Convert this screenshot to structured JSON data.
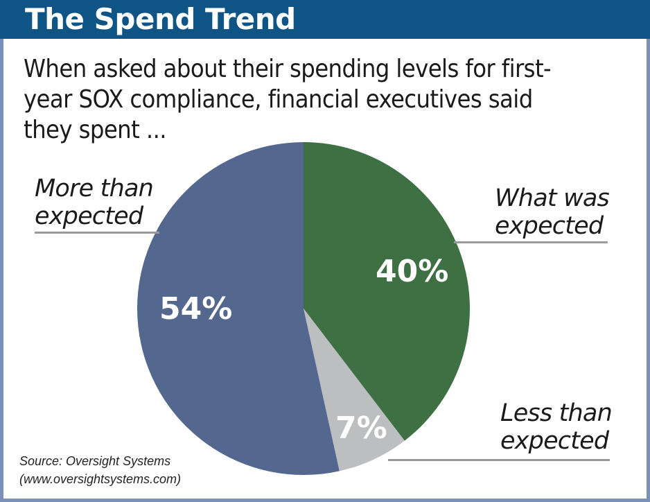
{
  "chart_data": {
    "type": "pie",
    "title": "The Spend Trend",
    "subtitle": "When asked about their spending levels for first-year SOX compliance, financial executives said they spent ...",
    "slices": [
      {
        "label": "What was expected",
        "value": 40,
        "display": "40%",
        "color": "#3e7044"
      },
      {
        "label": "Less than expected",
        "value": 7,
        "display": "7%",
        "color": "#bdbec0"
      },
      {
        "label": "More than expected",
        "value": 54,
        "display": "54%",
        "color": "#54688f"
      }
    ],
    "start_angle": "top (12 o'clock), clockwise",
    "source": "Source: Oversight Systems (www.oversightsystems.com)"
  },
  "header": {
    "title": "The Spend Trend"
  },
  "subtitle_lines": [
    "When asked about their spending levels for first-",
    "year SOX compliance, financial executives said",
    "they spent ..."
  ],
  "labels": {
    "more": [
      "More than",
      "expected"
    ],
    "what": [
      "What was",
      "expected"
    ],
    "less": [
      "Less than",
      "expected"
    ]
  },
  "source_lines": [
    "Source: Oversight Systems",
    "(www.oversightsystems.com)"
  ],
  "colors": {
    "header": "#0e5585",
    "frame": "#7a90b6"
  }
}
